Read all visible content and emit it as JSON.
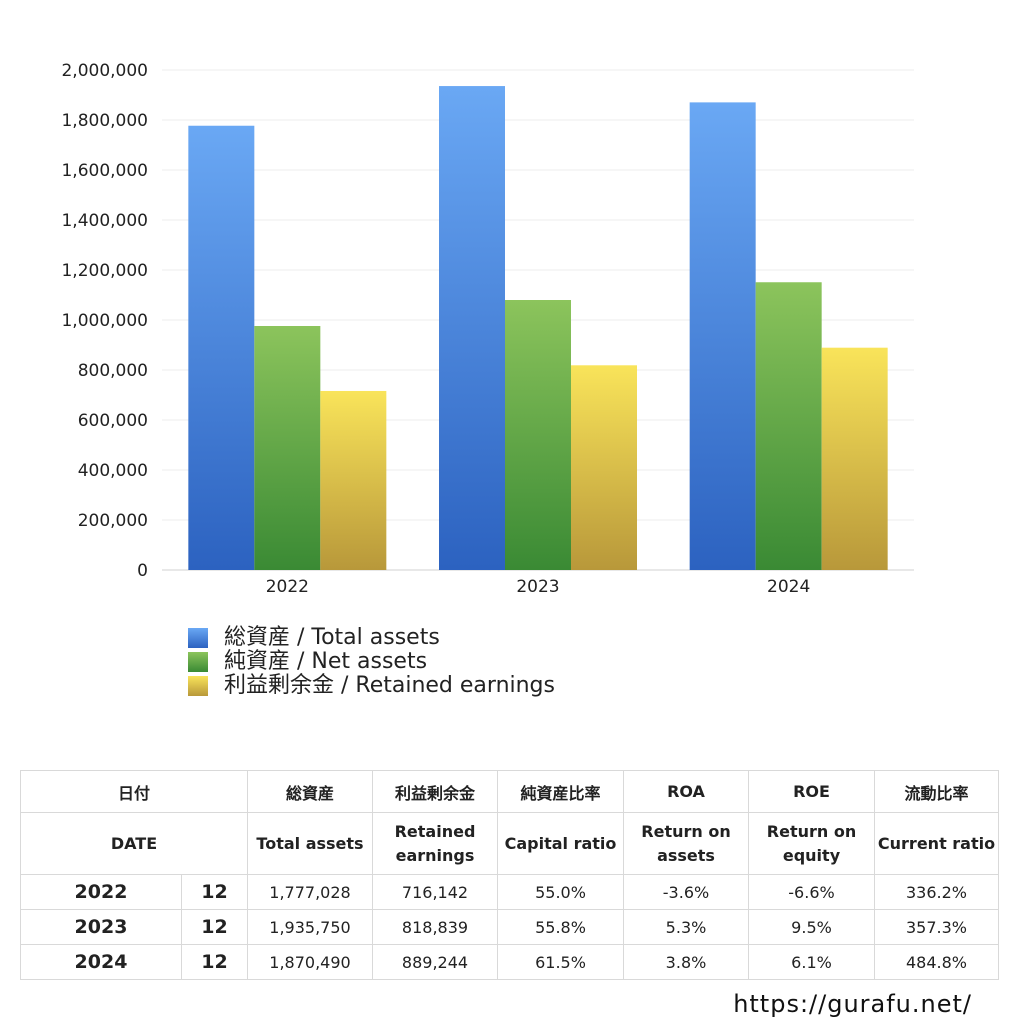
{
  "chart_data": {
    "type": "bar",
    "categories": [
      "2022",
      "2023",
      "2024"
    ],
    "series": [
      {
        "name": "総資産 / Total assets",
        "values": [
          1777028,
          1935750,
          1870490
        ]
      },
      {
        "name": "純資産 / Net assets",
        "values": [
          976000,
          1080000,
          1151000
        ]
      },
      {
        "name": "利益剰余金 / Retained earnings",
        "values": [
          716142,
          818839,
          889244
        ]
      }
    ],
    "ylim": [
      0,
      2000000
    ],
    "yticks": [
      "0",
      "200,000",
      "400,000",
      "600,000",
      "800,000",
      "1,000,000",
      "1,200,000",
      "1,400,000",
      "1,600,000",
      "1,800,000",
      "2,000,000"
    ],
    "grid": true,
    "legend_position": "bottom-left",
    "colors": {
      "total_top": "#6aa8f4",
      "total_bottom": "#2c62c0",
      "net_top": "#8cc45c",
      "net_bottom": "#3a8a34",
      "retained_top": "#f9e45a",
      "retained_bottom": "#b8983a"
    }
  },
  "table": {
    "header_jp": [
      "日付",
      "総資産",
      "利益剰余金",
      "純資産比率",
      "ROA",
      "ROE",
      "流動比率"
    ],
    "header_en": {
      "date": "DATE",
      "total_assets": "Total assets",
      "retained_1": "Retained",
      "retained_2": "earnings",
      "capital_ratio": "Capital ratio",
      "roa_1": "Return on",
      "roa_2": "assets",
      "roe_1": "Return on",
      "roe_2": "equity",
      "current_ratio": "Current ratio"
    },
    "rows": [
      {
        "year": "2022",
        "month": "12",
        "total_assets": "1,777,028",
        "retained": "716,142",
        "capital_ratio": "55.0%",
        "roa": "-3.6%",
        "roe": "-6.6%",
        "current_ratio": "336.2%"
      },
      {
        "year": "2023",
        "month": "12",
        "total_assets": "1,935,750",
        "retained": "818,839",
        "capital_ratio": "55.8%",
        "roa": "5.3%",
        "roe": "9.5%",
        "current_ratio": "357.3%"
      },
      {
        "year": "2024",
        "month": "12",
        "total_assets": "1,870,490",
        "retained": "889,244",
        "capital_ratio": "61.5%",
        "roa": "3.8%",
        "roe": "6.1%",
        "current_ratio": "484.8%"
      }
    ]
  },
  "footer": {
    "url": "https://gurafu.net/"
  }
}
